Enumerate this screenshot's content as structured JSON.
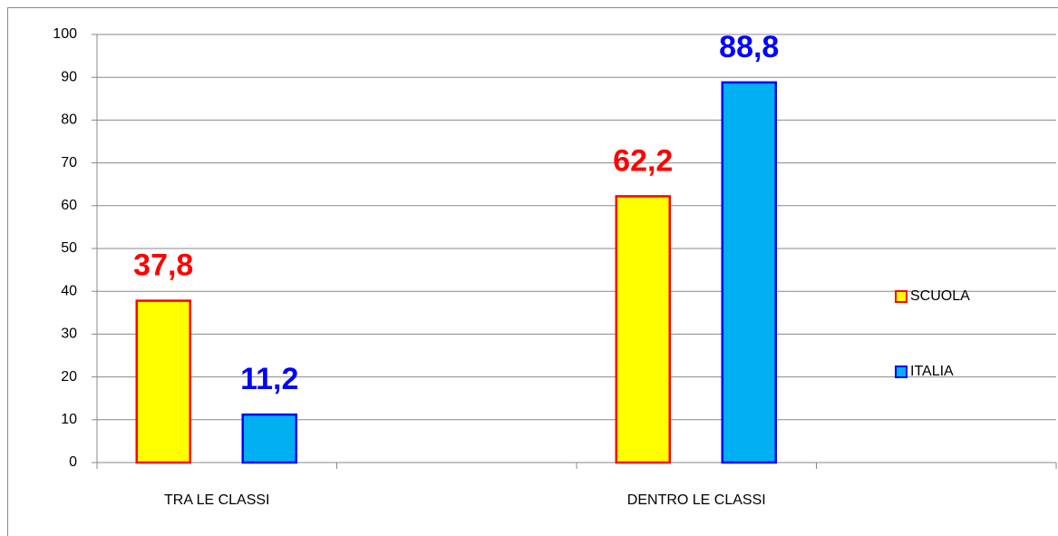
{
  "chart_data": {
    "type": "bar",
    "categories": [
      "TRA LE CLASSI",
      null,
      "DENTRO LE CLASSI",
      null
    ],
    "series": [
      {
        "name": "SCUOLA",
        "color": "#ffff00",
        "edgecolor": "#ff0000",
        "values": [
          37.8,
          null,
          62.2,
          null
        ],
        "value_labels": [
          "37,8",
          null,
          "62,2",
          null
        ]
      },
      {
        "name": "ITALIA",
        "color": "#00b0f0",
        "edgecolor": "#0000ff",
        "values": [
          11.2,
          null,
          88.8,
          null
        ],
        "value_labels": [
          "11,2",
          null,
          "88,8",
          null
        ]
      }
    ],
    "ylim": [
      0,
      100
    ],
    "yticks": [
      0,
      10,
      20,
      30,
      40,
      50,
      60,
      70,
      80,
      90,
      100
    ],
    "grid": true,
    "legend": "right"
  }
}
